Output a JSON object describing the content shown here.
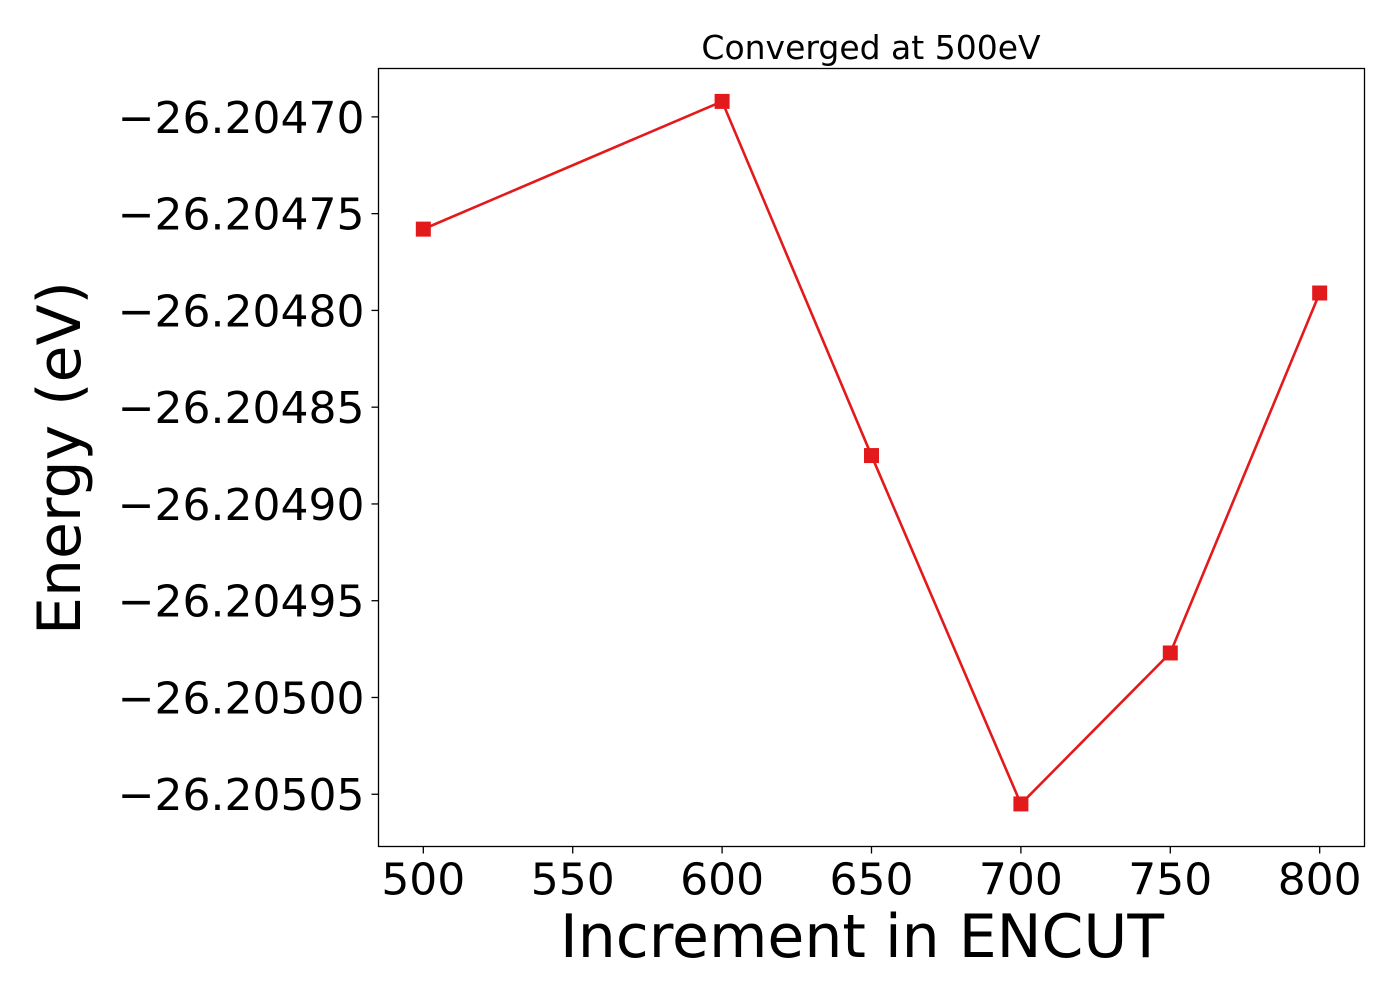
{
  "chart_data": {
    "type": "line",
    "title": "Converged at 500eV",
    "xlabel": "Increment in ENCUT",
    "ylabel": "Energy (eV)",
    "x": [
      500,
      600,
      650,
      700,
      750,
      800
    ],
    "series": [
      {
        "values": [
          -26.204758,
          -26.204692,
          -26.204875,
          -26.205055,
          -26.204977,
          -26.204791
        ],
        "color": "#e31a1c",
        "marker": "square"
      }
    ],
    "xlim": [
      485,
      815
    ],
    "ylim": [
      -26.205077,
      -26.204675
    ],
    "xticks": [
      500,
      550,
      600,
      650,
      700,
      750,
      800
    ],
    "xtick_labels": [
      "500",
      "550",
      "600",
      "650",
      "700",
      "750",
      "800"
    ],
    "yticks": [
      -26.2047,
      -26.20475,
      -26.2048,
      -26.20485,
      -26.2049,
      -26.20495,
      -26.205,
      -26.20505
    ],
    "ytick_labels": [
      "−26.20470",
      "−26.20475",
      "−26.20480",
      "−26.20485",
      "−26.20490",
      "−26.20495",
      "−26.20500",
      "−26.20505"
    ],
    "grid": false,
    "legend": "none"
  }
}
